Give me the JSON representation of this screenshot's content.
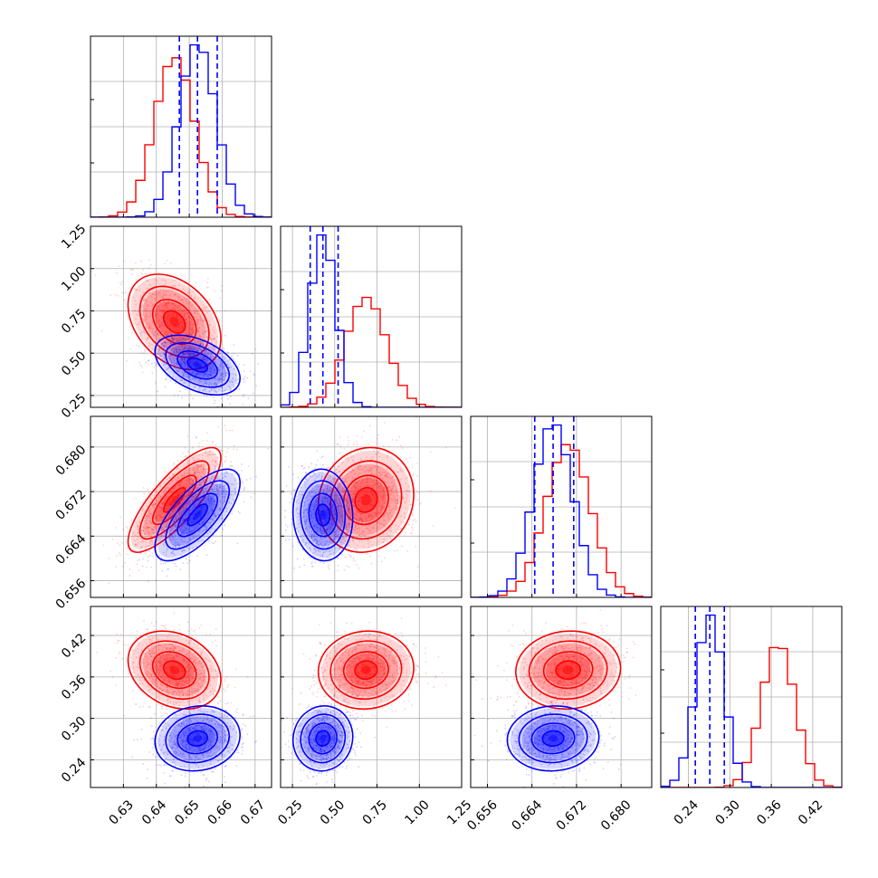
{
  "chart_data": {
    "type": "corner",
    "grid": true,
    "colors": {
      "red": "#ff0000",
      "blue": "#0000ff"
    },
    "parameters": [
      {
        "range": [
          0.62,
          0.675
        ],
        "ticks": [
          0.63,
          0.64,
          0.65,
          0.66,
          0.67
        ],
        "tick_labels": [
          "0.63",
          "0.64",
          "0.65",
          "0.66",
          "0.67"
        ]
      },
      {
        "range": [
          0.18,
          1.25
        ],
        "ticks": [
          0.25,
          0.5,
          0.75,
          1.0,
          1.25
        ],
        "tick_labels": [
          "0.25",
          "0.50",
          "0.75",
          "1.00",
          "1.25"
        ]
      },
      {
        "range": [
          0.653,
          0.6855
        ],
        "ticks": [
          0.656,
          0.664,
          0.672,
          0.68
        ],
        "tick_labels": [
          "0.656",
          "0.664",
          "0.672",
          "0.680"
        ]
      },
      {
        "range": [
          0.2,
          0.462
        ],
        "ticks": [
          0.24,
          0.3,
          0.36,
          0.42
        ],
        "tick_labels": [
          "0.24",
          "0.30",
          "0.36",
          "0.42"
        ]
      }
    ],
    "series": [
      {
        "color": "red",
        "mean": [
          0.6455,
          0.685,
          0.6705,
          0.37
        ],
        "sigma": [
          0.006,
          0.12,
          0.004,
          0.024
        ],
        "corr": {
          "0-1": -0.35,
          "0-2": 0.8,
          "0-3": -0.25,
          "1-2": 0.1,
          "1-3": 0.05,
          "2-3": 0.05
        }
      },
      {
        "color": "blue",
        "mean": [
          0.6525,
          0.43,
          0.6678,
          0.271
        ],
        "sigma": [
          0.0055,
          0.075,
          0.0035,
          0.02
        ],
        "corr": {
          "0-1": -0.45,
          "0-2": 0.7,
          "0-3": 0.1,
          "1-2": -0.05,
          "1-3": 0.05,
          "2-3": 0.05
        }
      }
    ],
    "quantiles": {
      "series": "blue",
      "values": [
        [
          0.647,
          0.6525,
          0.6585
        ],
        [
          0.355,
          0.43,
          0.52
        ],
        [
          0.6645,
          0.6678,
          0.6715
        ],
        [
          0.25,
          0.271,
          0.292
        ]
      ]
    }
  }
}
